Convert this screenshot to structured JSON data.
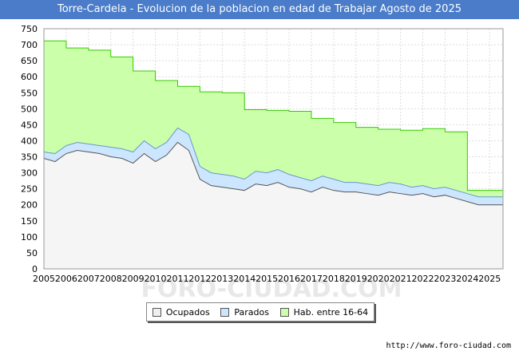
{
  "title": "Torre-Cardela - Evolucion de la poblacion en edad de Trabajar Agosto de 2025",
  "footer": "http://www.foro-ciudad.com",
  "watermark": "FORO-CIUDAD.COM",
  "colors": {
    "title_bg": "#4a7cc9",
    "hab": "#ccffaa",
    "hab_line": "#33cc00",
    "parados": "#cce6ff",
    "parados_line": "#6699cc",
    "ocupados": "#f5f5f5",
    "ocupados_line": "#555555"
  },
  "legend": [
    {
      "label": "Ocupados",
      "color": "#f0f0f0"
    },
    {
      "label": "Parados",
      "color": "#cce6ff"
    },
    {
      "label": "Hab. entre 16-64",
      "color": "#ccffaa"
    }
  ],
  "chart_data": {
    "type": "area",
    "ylim": [
      0,
      750
    ],
    "y_ticks": [
      0,
      50,
      100,
      150,
      200,
      250,
      300,
      350,
      400,
      450,
      500,
      550,
      600,
      650,
      700,
      750
    ],
    "x_ticks": [
      "2005",
      "2006",
      "2007",
      "2008",
      "2009",
      "2010",
      "2011",
      "2012",
      "2013",
      "2014",
      "2015",
      "2016",
      "2017",
      "2018",
      "2019",
      "2020",
      "2021",
      "2022",
      "2023",
      "2024",
      "2025"
    ],
    "grid": true,
    "hab_16_64": {
      "years": [
        2005,
        2006,
        2007,
        2008,
        2009,
        2010,
        2011,
        2012,
        2013,
        2014,
        2015,
        2016,
        2017,
        2018,
        2019,
        2020,
        2021,
        2022,
        2023,
        2024
      ],
      "values": [
        712,
        690,
        683,
        662,
        618,
        588,
        570,
        553,
        550,
        497,
        495,
        492,
        470,
        457,
        442,
        436,
        433,
        438,
        428,
        245
      ]
    },
    "series": [
      {
        "name": "Ocupados",
        "x": [
          2005,
          2005.5,
          2006,
          2006.5,
          2007,
          2007.5,
          2008,
          2008.5,
          2009,
          2009.5,
          2010,
          2010.5,
          2011,
          2011.5,
          2012,
          2012.5,
          2013,
          2013.5,
          2014,
          2014.5,
          2015,
          2015.5,
          2016,
          2016.5,
          2017,
          2017.5,
          2018,
          2018.5,
          2019,
          2019.5,
          2020,
          2020.5,
          2021,
          2021.5,
          2022,
          2022.5,
          2023,
          2023.5,
          2024,
          2024.5,
          2025,
          2025.6
        ],
        "values": [
          345,
          335,
          360,
          370,
          365,
          360,
          350,
          345,
          330,
          360,
          335,
          355,
          395,
          370,
          280,
          260,
          255,
          250,
          245,
          265,
          260,
          270,
          255,
          250,
          240,
          255,
          245,
          240,
          240,
          235,
          230,
          240,
          235,
          230,
          235,
          225,
          230,
          220,
          210,
          200,
          200,
          200
        ]
      },
      {
        "name": "Parados",
        "x": [
          2005,
          2005.5,
          2006,
          2006.5,
          2007,
          2007.5,
          2008,
          2008.5,
          2009,
          2009.5,
          2010,
          2010.5,
          2011,
          2011.5,
          2012,
          2012.5,
          2013,
          2013.5,
          2014,
          2014.5,
          2015,
          2015.5,
          2016,
          2016.5,
          2017,
          2017.5,
          2018,
          2018.5,
          2019,
          2019.5,
          2020,
          2020.5,
          2021,
          2021.5,
          2022,
          2022.5,
          2023,
          2023.5,
          2024,
          2024.5,
          2025,
          2025.6
        ],
        "values": [
          20,
          25,
          25,
          25,
          25,
          25,
          30,
          30,
          35,
          40,
          40,
          40,
          45,
          50,
          40,
          40,
          40,
          40,
          35,
          40,
          40,
          40,
          40,
          35,
          35,
          35,
          35,
          30,
          30,
          30,
          30,
          30,
          30,
          25,
          25,
          25,
          25,
          25,
          25,
          25,
          25,
          25
        ]
      }
    ]
  }
}
